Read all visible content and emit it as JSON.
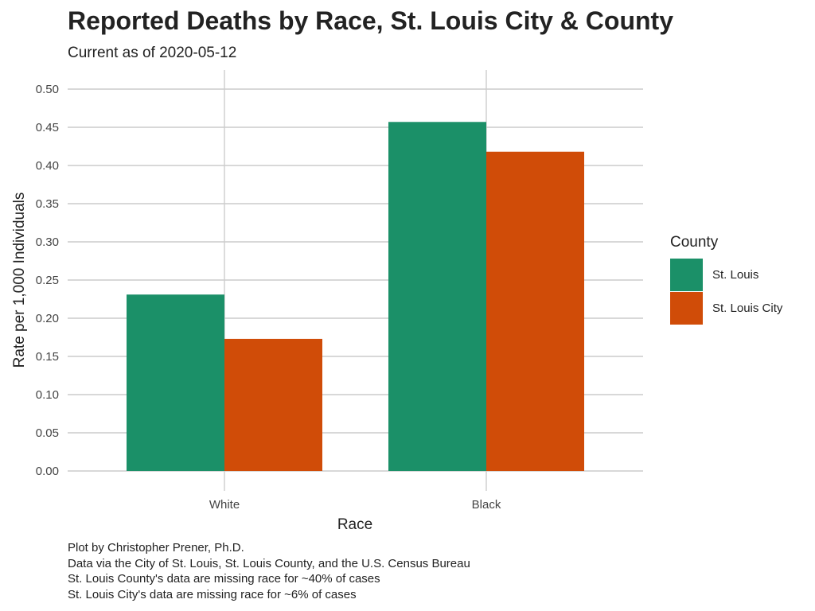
{
  "chart_data": {
    "type": "bar",
    "title": "Reported Deaths by Race, St. Louis City & County",
    "subtitle": "Current as of 2020-05-12",
    "xlabel": "Race",
    "ylabel": "Rate per 1,000 Individuals",
    "categories": [
      "White",
      "Black"
    ],
    "series": [
      {
        "name": "St. Louis",
        "values": [
          0.231,
          0.457
        ],
        "color": "#1b9068"
      },
      {
        "name": "St. Louis City",
        "values": [
          0.173,
          0.418
        ],
        "color": "#d04c08"
      }
    ],
    "ylim": [
      0,
      0.5
    ],
    "yticks": [
      "0.00",
      "0.05",
      "0.10",
      "0.15",
      "0.20",
      "0.25",
      "0.30",
      "0.35",
      "0.40",
      "0.45",
      "0.50"
    ],
    "grid": true,
    "legend": {
      "title": "County",
      "position": "right"
    },
    "caption": [
      "Plot by Christopher Prener, Ph.D.",
      "Data via the City of St. Louis, St. Louis County, and the U.S. Census Bureau",
      "St. Louis County's data are missing race for ~40% of cases",
      "St. Louis City's data are missing race for ~6% of cases"
    ]
  }
}
